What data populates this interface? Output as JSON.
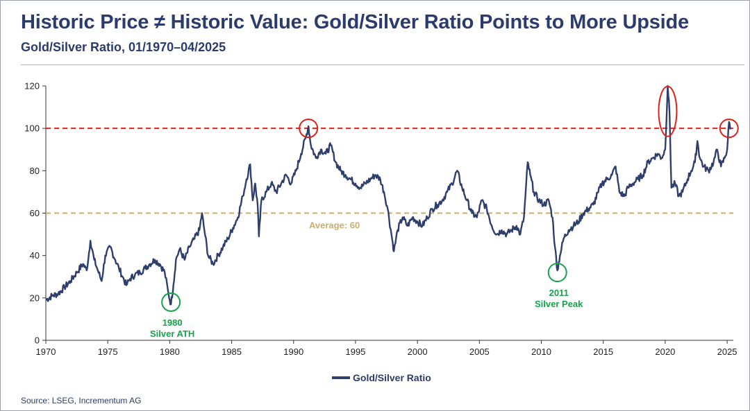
{
  "header": {
    "title": "Historic Price ≠ Historic Value: Gold/Silver Ratio Points to More Upside",
    "subtitle": "Gold/Silver Ratio, 01/1970–04/2025"
  },
  "source": "Source: LSEG, Incrementum AG",
  "colors": {
    "series": "#2e3f6e",
    "reference_red": "#e0201a",
    "average_gold": "#c9ad6f",
    "marker_green": "#16a34a",
    "text": "#2b3b6b"
  },
  "chart_data": {
    "type": "line",
    "title": "Gold/Silver Ratio, 01/1970–04/2025",
    "xlim": [
      1970,
      2025.5
    ],
    "ylim": [
      0,
      120
    ],
    "x_ticks": [
      1970,
      1975,
      1980,
      1985,
      1990,
      1995,
      2000,
      2005,
      2010,
      2015,
      2020,
      2025
    ],
    "y_ticks": [
      0,
      20,
      40,
      60,
      80,
      100,
      120
    ],
    "grid": false,
    "legend_position": "bottom-center",
    "series": [
      {
        "name": "Gold/Silver Ratio",
        "points": [
          [
            1970.0,
            19
          ],
          [
            1970.5,
            21
          ],
          [
            1971.0,
            22
          ],
          [
            1971.5,
            25
          ],
          [
            1972.0,
            28
          ],
          [
            1972.5,
            32
          ],
          [
            1973.0,
            36
          ],
          [
            1973.3,
            33
          ],
          [
            1973.6,
            47
          ],
          [
            1973.9,
            38
          ],
          [
            1974.2,
            33
          ],
          [
            1974.5,
            28
          ],
          [
            1974.8,
            40
          ],
          [
            1975.2,
            44
          ],
          [
            1975.6,
            38
          ],
          [
            1975.9,
            34
          ],
          [
            1976.2,
            30
          ],
          [
            1976.5,
            26
          ],
          [
            1976.8,
            29
          ],
          [
            1977.2,
            31
          ],
          [
            1977.6,
            32
          ],
          [
            1978.0,
            34
          ],
          [
            1978.4,
            36
          ],
          [
            1978.8,
            38
          ],
          [
            1979.2,
            36
          ],
          [
            1979.6,
            32
          ],
          [
            1979.9,
            22
          ],
          [
            1980.1,
            17
          ],
          [
            1980.3,
            26
          ],
          [
            1980.5,
            38
          ],
          [
            1980.8,
            43
          ],
          [
            1981.2,
            38
          ],
          [
            1981.6,
            44
          ],
          [
            1982.0,
            48
          ],
          [
            1982.4,
            52
          ],
          [
            1982.6,
            60
          ],
          [
            1982.8,
            52
          ],
          [
            1983.1,
            40
          ],
          [
            1983.5,
            36
          ],
          [
            1983.9,
            40
          ],
          [
            1984.3,
            44
          ],
          [
            1984.7,
            48
          ],
          [
            1985.1,
            53
          ],
          [
            1985.5,
            58
          ],
          [
            1985.9,
            68
          ],
          [
            1986.2,
            76
          ],
          [
            1986.5,
            83
          ],
          [
            1986.7,
            66
          ],
          [
            1986.9,
            74
          ],
          [
            1987.1,
            64
          ],
          [
            1987.2,
            49
          ],
          [
            1987.4,
            66
          ],
          [
            1987.8,
            70
          ],
          [
            1988.2,
            74
          ],
          [
            1988.6,
            70
          ],
          [
            1989.0,
            74
          ],
          [
            1989.4,
            78
          ],
          [
            1989.8,
            74
          ],
          [
            1990.2,
            80
          ],
          [
            1990.6,
            88
          ],
          [
            1991.0,
            96
          ],
          [
            1991.2,
            101
          ],
          [
            1991.4,
            92
          ],
          [
            1991.8,
            86
          ],
          [
            1992.2,
            90
          ],
          [
            1992.6,
            88
          ],
          [
            1993.0,
            92
          ],
          [
            1993.4,
            84
          ],
          [
            1993.8,
            80
          ],
          [
            1994.2,
            78
          ],
          [
            1994.6,
            76
          ],
          [
            1995.0,
            74
          ],
          [
            1995.4,
            72
          ],
          [
            1995.8,
            74
          ],
          [
            1996.2,
            76
          ],
          [
            1996.6,
            78
          ],
          [
            1997.0,
            76
          ],
          [
            1997.3,
            70
          ],
          [
            1997.6,
            62
          ],
          [
            1997.9,
            50
          ],
          [
            1998.1,
            42
          ],
          [
            1998.4,
            52
          ],
          [
            1998.8,
            58
          ],
          [
            1999.2,
            54
          ],
          [
            1999.6,
            58
          ],
          [
            2000.0,
            56
          ],
          [
            2000.4,
            54
          ],
          [
            2000.8,
            58
          ],
          [
            2001.2,
            62
          ],
          [
            2001.6,
            64
          ],
          [
            2002.0,
            66
          ],
          [
            2002.4,
            70
          ],
          [
            2002.8,
            74
          ],
          [
            2003.2,
            80
          ],
          [
            2003.6,
            72
          ],
          [
            2004.0,
            66
          ],
          [
            2004.4,
            60
          ],
          [
            2004.8,
            58
          ],
          [
            2005.2,
            66
          ],
          [
            2005.6,
            62
          ],
          [
            2006.0,
            54
          ],
          [
            2006.4,
            50
          ],
          [
            2006.8,
            52
          ],
          [
            2007.2,
            50
          ],
          [
            2007.6,
            52
          ],
          [
            2008.0,
            54
          ],
          [
            2008.3,
            50
          ],
          [
            2008.6,
            58
          ],
          [
            2008.9,
            84
          ],
          [
            2009.1,
            78
          ],
          [
            2009.4,
            70
          ],
          [
            2009.8,
            66
          ],
          [
            2010.2,
            64
          ],
          [
            2010.6,
            66
          ],
          [
            2010.9,
            58
          ],
          [
            2011.1,
            44
          ],
          [
            2011.3,
            33
          ],
          [
            2011.5,
            40
          ],
          [
            2011.8,
            48
          ],
          [
            2012.2,
            52
          ],
          [
            2012.6,
            54
          ],
          [
            2013.0,
            56
          ],
          [
            2013.4,
            60
          ],
          [
            2013.8,
            62
          ],
          [
            2014.2,
            64
          ],
          [
            2014.6,
            70
          ],
          [
            2014.9,
            74
          ],
          [
            2015.3,
            76
          ],
          [
            2015.7,
            78
          ],
          [
            2016.0,
            82
          ],
          [
            2016.3,
            70
          ],
          [
            2016.7,
            68
          ],
          [
            2017.0,
            72
          ],
          [
            2017.4,
            74
          ],
          [
            2017.8,
            76
          ],
          [
            2018.2,
            78
          ],
          [
            2018.6,
            84
          ],
          [
            2019.0,
            86
          ],
          [
            2019.4,
            88
          ],
          [
            2019.7,
            86
          ],
          [
            2020.0,
            90
          ],
          [
            2020.2,
            120
          ],
          [
            2020.35,
            108
          ],
          [
            2020.5,
            72
          ],
          [
            2020.8,
            74
          ],
          [
            2021.1,
            68
          ],
          [
            2021.4,
            70
          ],
          [
            2021.8,
            76
          ],
          [
            2022.1,
            80
          ],
          [
            2022.4,
            84
          ],
          [
            2022.6,
            94
          ],
          [
            2022.8,
            86
          ],
          [
            2023.1,
            82
          ],
          [
            2023.5,
            80
          ],
          [
            2023.9,
            84
          ],
          [
            2024.2,
            90
          ],
          [
            2024.5,
            82
          ],
          [
            2024.8,
            86
          ],
          [
            2025.0,
            90
          ],
          [
            2025.15,
            103
          ],
          [
            2025.3,
            100
          ]
        ]
      }
    ],
    "reference_lines": [
      {
        "y": 100,
        "style": "dashed",
        "color": "#e0201a"
      },
      {
        "y": 60,
        "style": "dashed",
        "color": "#c9ad6f",
        "label": "Average: 60"
      }
    ],
    "annotations": [
      {
        "x": 1980.1,
        "y": 18,
        "marker": "green-circle",
        "label_lines": [
          "1980",
          "Silver ATH"
        ]
      },
      {
        "x": 2011.3,
        "y": 32,
        "marker": "green-circle",
        "label_lines": [
          "2011",
          "Silver Peak"
        ]
      },
      {
        "x": 1991.2,
        "y": 100,
        "marker": "red-circle"
      },
      {
        "x": 2020.2,
        "y": 108,
        "marker": "red-ellipse"
      },
      {
        "x": 2025.15,
        "y": 100,
        "marker": "red-circle"
      }
    ]
  }
}
